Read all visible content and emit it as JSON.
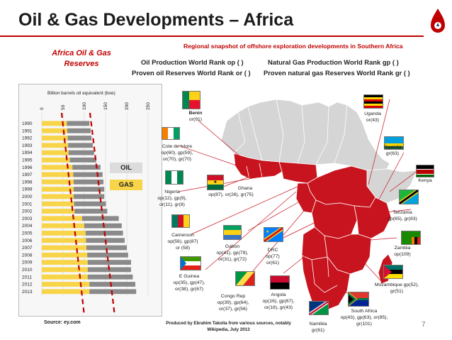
{
  "header": {
    "title": "Oil & Gas Developments – Africa",
    "subtitle": "Regional snapshot of offshore exploration developments in Southern Africa"
  },
  "legend": {
    "oil_production": "Oil Production World Rank op ( )",
    "proven_oil": "Proven oil Reserves World Rank or ( )",
    "gas_production": "Natural Gas Production World Rank gp ( )",
    "proven_gas": "Proven natural gas Reserves World Rank gr ( )"
  },
  "reserves_chart": {
    "panel_title": "Africa Oil & Gas Reserves",
    "oil_label": "OIL",
    "gas_label": "GAS",
    "oil_color": "#f8d448",
    "gas_color": "#8a8a8a",
    "callout_fill": "#dcdcdc",
    "callout_gas_fill": "#f8d448"
  },
  "chart_data": {
    "type": "bar",
    "title": "Billion barrels oil equivalent (boe)",
    "xlabel": "",
    "ylabel": "",
    "xlim": [
      0,
      250
    ],
    "x_ticks": [
      "0",
      "50",
      "100",
      "150",
      "200",
      "250"
    ],
    "categories": [
      "1990",
      "1991",
      "1992",
      "1993",
      "1994",
      "1995",
      "1996",
      "1997",
      "1998",
      "1999",
      "2000",
      "2001",
      "2002",
      "2003",
      "2004",
      "2005",
      "2006",
      "2007",
      "2008",
      "2009",
      "2010",
      "2011",
      "2012",
      "2013"
    ],
    "series": [
      {
        "name": "OIL",
        "values": [
          59,
          60,
          61,
          62,
          63,
          66,
          72,
          74,
          75,
          75,
          75,
          76,
          77,
          95,
          100,
          103,
          104,
          105,
          107,
          108,
          108,
          108,
          112,
          112
        ]
      },
      {
        "name": "GAS",
        "values": [
          53,
          55,
          56,
          58,
          60,
          62,
          66,
          69,
          70,
          72,
          72,
          75,
          77,
          86,
          88,
          88,
          91,
          95,
          96,
          102,
          102,
          106,
          108,
          110
        ]
      }
    ],
    "stacked": true,
    "grid": true
  },
  "countries": [
    {
      "name": "Benin",
      "ranks": "or(91)"
    },
    {
      "name": "Cote de Ivlore",
      "ranks": "op(60), gp(59),",
      "ranks2": "or(70), gr(70)"
    },
    {
      "name": "Nigeria",
      "ranks": "op(12), gp(9),",
      "ranks2": "or(11), gr(8)"
    },
    {
      "name": "Ghana",
      "ranks": "op(87), or(26), gr(75)"
    },
    {
      "name": "Cameroon",
      "ranks": "op(56), gp(87)",
      "ranks2": "or (58)"
    },
    {
      "name": "Gabon",
      "ranks": "op(41), gp(79),",
      "ranks2": "or(31), gr(72)"
    },
    {
      "name": "DRC",
      "ranks": "op(77)",
      "ranks2": "or(61)"
    },
    {
      "name": "E Guinea",
      "ranks": "op(35), gp(47),",
      "ranks2": "or(38), gr(67)"
    },
    {
      "name": "Congo Rep",
      "ranks": "op(39), gp(64),",
      "ranks2": "or(37), gr(56)"
    },
    {
      "name": "Angola",
      "ranks": "op(16), gp(67),",
      "ranks2": "or(18), gr(43)"
    },
    {
      "name": "Namibia",
      "ranks": "gr(61)"
    },
    {
      "name": "South Africa",
      "ranks": "op(43), gp(63), or(85),",
      "ranks2": "gr(101)"
    },
    {
      "name": "Mozambique",
      "ranks": "gp(52),",
      "ranks2": "gr(51)"
    },
    {
      "name": "Zambia",
      "ranks": "op(109)"
    },
    {
      "name": "Tanzania",
      "ranks": "gp(65), gr(83)"
    },
    {
      "name": "Kenya",
      "ranks": ""
    },
    {
      "name": "Rwanda",
      "ranks": "gr(63)"
    },
    {
      "name": "Uganda",
      "ranks": "or(43)"
    }
  ],
  "footer": {
    "source": "Source: ey.com",
    "produced_by": "Produced by Ebrahim Takolia from various sources, notably Wikipedia, July 2013",
    "page_number": "7"
  }
}
